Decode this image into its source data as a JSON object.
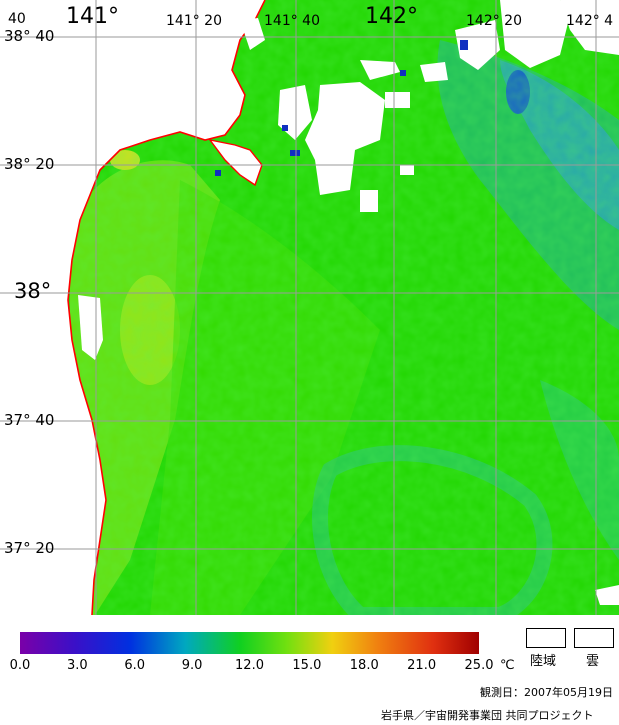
{
  "map": {
    "lat_labels": [
      "38° 40",
      "38° 20",
      "38°",
      "37° 40",
      "37° 20"
    ],
    "lon_labels": [
      "40",
      "141°",
      "141° 20",
      "141° 40",
      "142°",
      "142° 20",
      "142° 4"
    ]
  },
  "colors": {
    "sea_main": "#1fd400",
    "land": "#ffffff",
    "coastline": "#ff0000",
    "graticule": "#9a9a9a"
  },
  "colorbar": {
    "ticks": [
      "0.0",
      "3.0",
      "6.0",
      "9.0",
      "12.0",
      "15.0",
      "18.0",
      "21.0",
      "25.0"
    ],
    "unit": "℃",
    "min": 0,
    "max": 25
  },
  "key": {
    "land_label": "陸域",
    "cloud_label": "雲"
  },
  "footer": {
    "date": "観測日：2007年05月19日",
    "credit": "岩手県／宇宙開発事業団 共同プロジェクト"
  }
}
